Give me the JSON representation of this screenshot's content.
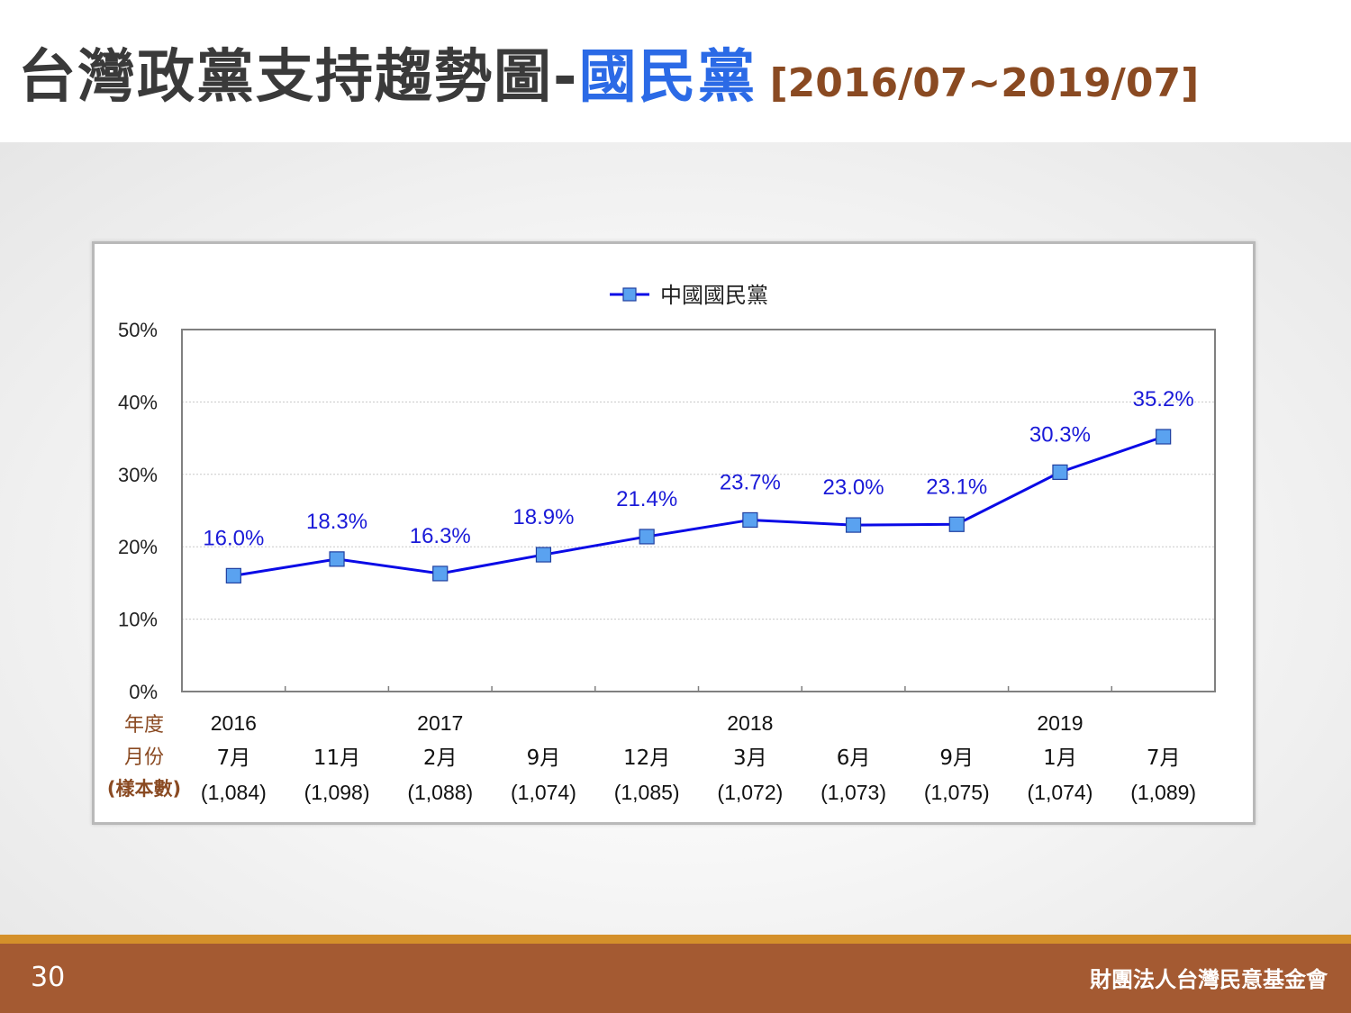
{
  "title": {
    "main": "台灣政黨支持趨勢圖-",
    "party": "國民黨",
    "range": "[2016/07~2019/07]"
  },
  "footer": {
    "page_number": "30",
    "organization": "財團法人台灣民意基金會"
  },
  "colors": {
    "series_line": "#0a0ae6",
    "marker_fill": "#5aa2f0",
    "marker_stroke": "#1f3fa0",
    "data_label": "#1a1ad8",
    "row_label": "#8a4a22",
    "footer_bg": "#a45a32",
    "footer_accent": "#d4902a",
    "title_party": "#2b6ae6"
  },
  "chart_data": {
    "type": "line",
    "legend": {
      "label": "中國國民黨",
      "placement": "top-center"
    },
    "y_axis": {
      "min": 0,
      "max": 50,
      "step": 10,
      "unit": "%",
      "ticks": [
        "0%",
        "10%",
        "20%",
        "30%",
        "40%",
        "50%"
      ]
    },
    "grid": true,
    "row_labels": {
      "year": "年度",
      "month": "月份",
      "sample": "(樣本數)"
    },
    "categories": [
      {
        "year": "2016",
        "month": "7月",
        "sample": "(1,084)"
      },
      {
        "year": "",
        "month": "11月",
        "sample": "(1,098)"
      },
      {
        "year": "2017",
        "month": "2月",
        "sample": "(1,088)"
      },
      {
        "year": "",
        "month": "9月",
        "sample": "(1,074)"
      },
      {
        "year": "",
        "month": "12月",
        "sample": "(1,085)"
      },
      {
        "year": "2018",
        "month": "3月",
        "sample": "(1,072)"
      },
      {
        "year": "",
        "month": "6月",
        "sample": "(1,073)"
      },
      {
        "year": "",
        "month": "9月",
        "sample": "(1,075)"
      },
      {
        "year": "2019",
        "month": "1月",
        "sample": "(1,074)"
      },
      {
        "year": "",
        "month": "7月",
        "sample": "(1,089)"
      }
    ],
    "series": [
      {
        "name": "中國國民黨",
        "values": [
          16.0,
          18.3,
          16.3,
          18.9,
          21.4,
          23.7,
          23.0,
          23.1,
          30.3,
          35.2
        ],
        "labels": [
          "16.0%",
          "18.3%",
          "16.3%",
          "18.9%",
          "21.4%",
          "23.7%",
          "23.0%",
          "23.1%",
          "30.3%",
          "35.2%"
        ]
      }
    ]
  }
}
